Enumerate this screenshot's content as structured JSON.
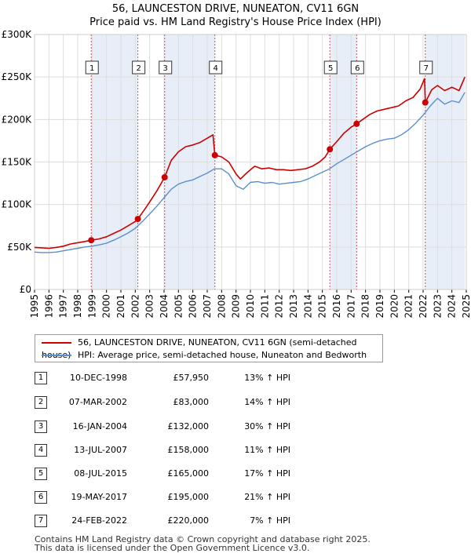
{
  "title_line1": "56, LAUNCESTON DRIVE, NUNEATON, CV11 6GN",
  "title_line2": "Price paid vs. HM Land Registry's House Price Index (HPI)",
  "legend": {
    "property_label": "56, LAUNCESTON DRIVE, NUNEATON, CV11 6GN (semi-detached house)",
    "hpi_label": "HPI: Average price, semi-detached house, Nuneaton and Bedworth"
  },
  "colors": {
    "property": "#cc0000",
    "hpi": "#5b8fcc",
    "shade": "#e8eef8",
    "grid": "#dddddd",
    "marker_line": "#cc5555"
  },
  "chart_data": {
    "type": "line",
    "xlim": [
      1995,
      2025
    ],
    "ylim": [
      0,
      300000
    ],
    "y_ticks": [
      {
        "value": 0,
        "label": "£0"
      },
      {
        "value": 50000,
        "label": "£50K"
      },
      {
        "value": 100000,
        "label": "£100K"
      },
      {
        "value": 150000,
        "label": "£150K"
      },
      {
        "value": 200000,
        "label": "£200K"
      },
      {
        "value": 250000,
        "label": "£250K"
      },
      {
        "value": 300000,
        "label": "£300K"
      }
    ],
    "x_ticks": [
      "1995",
      "1996",
      "1997",
      "1998",
      "1999",
      "2000",
      "2001",
      "2002",
      "2003",
      "2004",
      "2005",
      "2006",
      "2007",
      "2008",
      "2009",
      "2010",
      "2011",
      "2012",
      "2013",
      "2014",
      "2015",
      "2016",
      "2017",
      "2018",
      "2019",
      "2020",
      "2021",
      "2022",
      "2023",
      "2024",
      "2025"
    ],
    "grid": true,
    "shaded_periods": [
      [
        1998.94,
        2002.18
      ],
      [
        2004.04,
        2007.53
      ],
      [
        2015.52,
        2017.38
      ],
      [
        2022.15,
        2024.9
      ]
    ],
    "series": [
      {
        "name": "56, LAUNCESTON DRIVE, NUNEATON, CV11 6GN (semi-detached house)",
        "points": [
          [
            1995.0,
            49500
          ],
          [
            1995.5,
            49000
          ],
          [
            1996.0,
            48500
          ],
          [
            1996.5,
            49500
          ],
          [
            1997.0,
            51000
          ],
          [
            1997.5,
            53500
          ],
          [
            1998.0,
            55000
          ],
          [
            1998.5,
            56500
          ],
          [
            1998.94,
            57950
          ],
          [
            1999.5,
            59500
          ],
          [
            2000.0,
            62000
          ],
          [
            2000.5,
            66000
          ],
          [
            2001.0,
            70000
          ],
          [
            2001.5,
            75000
          ],
          [
            2002.0,
            80000
          ],
          [
            2002.18,
            83000
          ],
          [
            2002.6,
            93000
          ],
          [
            2003.0,
            103000
          ],
          [
            2003.5,
            116000
          ],
          [
            2004.04,
            132000
          ],
          [
            2004.5,
            152000
          ],
          [
            2005.0,
            162000
          ],
          [
            2005.5,
            168000
          ],
          [
            2006.0,
            170000
          ],
          [
            2006.5,
            173000
          ],
          [
            2007.0,
            178000
          ],
          [
            2007.4,
            182000
          ],
          [
            2007.53,
            158000
          ],
          [
            2008.0,
            156000
          ],
          [
            2008.5,
            150000
          ],
          [
            2009.0,
            136000
          ],
          [
            2009.3,
            130000
          ],
          [
            2009.8,
            138000
          ],
          [
            2010.3,
            145000
          ],
          [
            2010.8,
            142000
          ],
          [
            2011.3,
            143000
          ],
          [
            2011.8,
            141000
          ],
          [
            2012.3,
            141000
          ],
          [
            2012.8,
            140000
          ],
          [
            2013.3,
            141000
          ],
          [
            2013.8,
            142000
          ],
          [
            2014.3,
            145000
          ],
          [
            2014.8,
            150000
          ],
          [
            2015.2,
            156000
          ],
          [
            2015.52,
            165000
          ],
          [
            2016.0,
            174000
          ],
          [
            2016.5,
            184000
          ],
          [
            2017.0,
            191000
          ],
          [
            2017.38,
            195000
          ],
          [
            2017.8,
            200000
          ],
          [
            2018.3,
            206000
          ],
          [
            2018.8,
            210000
          ],
          [
            2019.3,
            212000
          ],
          [
            2019.8,
            214000
          ],
          [
            2020.3,
            216000
          ],
          [
            2020.8,
            222000
          ],
          [
            2021.3,
            226000
          ],
          [
            2021.8,
            236000
          ],
          [
            2022.1,
            248000
          ],
          [
            2022.15,
            220000
          ],
          [
            2022.6,
            235000
          ],
          [
            2023.0,
            240000
          ],
          [
            2023.5,
            234000
          ],
          [
            2024.0,
            238000
          ],
          [
            2024.5,
            234000
          ],
          [
            2024.9,
            250000
          ]
        ]
      },
      {
        "name": "HPI: Average price, semi-detached house, Nuneaton and Bedworth",
        "points": [
          [
            1995.0,
            44000
          ],
          [
            1995.5,
            43500
          ],
          [
            1996.0,
            43500
          ],
          [
            1996.5,
            44000
          ],
          [
            1997.0,
            45500
          ],
          [
            1997.5,
            47000
          ],
          [
            1998.0,
            48500
          ],
          [
            1998.5,
            50000
          ],
          [
            1999.0,
            51000
          ],
          [
            1999.5,
            52500
          ],
          [
            2000.0,
            54500
          ],
          [
            2000.5,
            58000
          ],
          [
            2001.0,
            62000
          ],
          [
            2001.5,
            66500
          ],
          [
            2002.0,
            72000
          ],
          [
            2002.5,
            80000
          ],
          [
            2003.0,
            89000
          ],
          [
            2003.5,
            98000
          ],
          [
            2004.0,
            108000
          ],
          [
            2004.5,
            118000
          ],
          [
            2005.0,
            124000
          ],
          [
            2005.5,
            127000
          ],
          [
            2006.0,
            129000
          ],
          [
            2006.5,
            133000
          ],
          [
            2007.0,
            137000
          ],
          [
            2007.5,
            142000
          ],
          [
            2008.0,
            142000
          ],
          [
            2008.5,
            136000
          ],
          [
            2009.0,
            122000
          ],
          [
            2009.5,
            118000
          ],
          [
            2010.0,
            126000
          ],
          [
            2010.5,
            127000
          ],
          [
            2011.0,
            125000
          ],
          [
            2011.5,
            126000
          ],
          [
            2012.0,
            124000
          ],
          [
            2012.5,
            125000
          ],
          [
            2013.0,
            126000
          ],
          [
            2013.5,
            127000
          ],
          [
            2014.0,
            130000
          ],
          [
            2014.5,
            134000
          ],
          [
            2015.0,
            138000
          ],
          [
            2015.5,
            142000
          ],
          [
            2016.0,
            148000
          ],
          [
            2016.5,
            153000
          ],
          [
            2017.0,
            158000
          ],
          [
            2017.5,
            163000
          ],
          [
            2018.0,
            168000
          ],
          [
            2018.5,
            172000
          ],
          [
            2019.0,
            175000
          ],
          [
            2019.5,
            177000
          ],
          [
            2020.0,
            178000
          ],
          [
            2020.5,
            182000
          ],
          [
            2021.0,
            188000
          ],
          [
            2021.5,
            196000
          ],
          [
            2022.0,
            205000
          ],
          [
            2022.5,
            216000
          ],
          [
            2023.0,
            225000
          ],
          [
            2023.5,
            218000
          ],
          [
            2024.0,
            222000
          ],
          [
            2024.5,
            220000
          ],
          [
            2024.9,
            232000
          ]
        ]
      }
    ],
    "sales": [
      {
        "num": "1",
        "x": 1998.94,
        "value": 57950
      },
      {
        "num": "2",
        "x": 2002.18,
        "value": 83000
      },
      {
        "num": "3",
        "x": 2004.04,
        "value": 132000
      },
      {
        "num": "4",
        "x": 2007.53,
        "value": 158000
      },
      {
        "num": "5",
        "x": 2015.52,
        "value": 165000
      },
      {
        "num": "6",
        "x": 2017.38,
        "value": 195000
      },
      {
        "num": "7",
        "x": 2022.15,
        "value": 220000
      }
    ]
  },
  "sales_table": [
    {
      "num": "1",
      "date": "10-DEC-1998",
      "price": "£57,950",
      "hpi": "13% ↑ HPI"
    },
    {
      "num": "2",
      "date": "07-MAR-2002",
      "price": "£83,000",
      "hpi": "14% ↑ HPI"
    },
    {
      "num": "3",
      "date": "16-JAN-2004",
      "price": "£132,000",
      "hpi": "30% ↑ HPI"
    },
    {
      "num": "4",
      "date": "13-JUL-2007",
      "price": "£158,000",
      "hpi": "11% ↑ HPI"
    },
    {
      "num": "5",
      "date": "08-JUL-2015",
      "price": "£165,000",
      "hpi": "17% ↑ HPI"
    },
    {
      "num": "6",
      "date": "19-MAY-2017",
      "price": "£195,000",
      "hpi": "21% ↑ HPI"
    },
    {
      "num": "7",
      "date": "24-FEB-2022",
      "price": "£220,000",
      "hpi": "7% ↑ HPI"
    }
  ],
  "footer": {
    "line1": "Contains HM Land Registry data © Crown copyright and database right 2025.",
    "line2": "This data is licensed under the Open Government Licence v3.0."
  }
}
